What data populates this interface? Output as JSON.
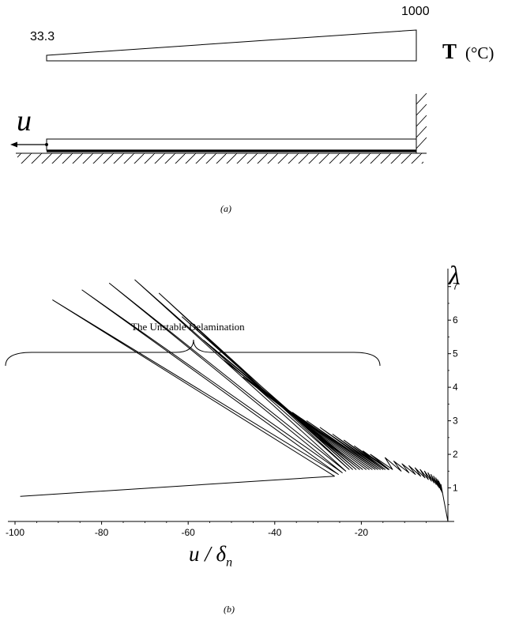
{
  "figure_a": {
    "temp_left": "33.3",
    "temp_right": "1000",
    "temp_symbol": "T",
    "temp_unit": "(°C)",
    "disp_symbol": "u",
    "caption": "(a)"
  },
  "chart_data": {
    "type": "line",
    "annotation": "The Unstable Delamination",
    "xlabel": "u / δn",
    "ylabel": "λ",
    "xlim": [
      -100,
      0
    ],
    "ylim": [
      0,
      7.3
    ],
    "xticks": [
      "-100",
      "-80",
      "-60",
      "-40",
      "-20"
    ],
    "yticks": [
      "1",
      "2",
      "3",
      "4",
      "5",
      "6",
      "7"
    ],
    "caption": "(b)",
    "series": [
      {
        "x": [
          0,
          -1.6,
          -1.3,
          -1.9,
          -1.5,
          -2.1,
          -1.7,
          -2.4,
          -2.0,
          -2.8,
          -2.3,
          -3.3,
          -2.7,
          -3.9,
          -3.2,
          -4.6,
          -3.8,
          -5.4,
          -4.5,
          -6.4,
          -5.3,
          -7.6,
          -6.3,
          -9.0,
          -7.5,
          -10.6,
          -9.0,
          -12.5,
          -10.8,
          -14.5,
          -12.8,
          -17.9,
          -13.6,
          -19.6,
          -13.8,
          -21.6,
          -14.5,
          -24.0,
          -15.0,
          -26.6,
          -15.6,
          -29.5,
          -16.2,
          -32.6,
          -16.8,
          -35.9,
          -17.5,
          -39.4,
          -18.2,
          -43.2,
          -18.9,
          -47.3,
          -19.7,
          -51.7,
          -20.4,
          -56.4,
          -21.2,
          -61.4,
          -22.0,
          -66.7,
          -22.8,
          -72.3,
          -23.6,
          -78.2,
          -24.4,
          -84.5,
          -25.3,
          -91.3,
          -26.2,
          -98.8
        ],
        "y": [
          0,
          1.1,
          0.85,
          1.15,
          0.9,
          1.2,
          0.95,
          1.25,
          1.0,
          1.3,
          1.05,
          1.35,
          1.1,
          1.4,
          1.15,
          1.45,
          1.2,
          1.5,
          1.25,
          1.55,
          1.3,
          1.6,
          1.35,
          1.66,
          1.4,
          1.72,
          1.45,
          1.8,
          1.5,
          1.9,
          1.55,
          2.0,
          1.55,
          2.1,
          1.55,
          2.25,
          1.55,
          2.42,
          1.55,
          2.6,
          1.55,
          2.8,
          1.55,
          3.0,
          1.55,
          3.25,
          1.55,
          3.55,
          1.55,
          3.9,
          1.55,
          4.3,
          1.55,
          4.8,
          1.55,
          5.4,
          1.55,
          6.1,
          1.55,
          6.8,
          1.55,
          7.2,
          1.5,
          7.1,
          1.45,
          6.9,
          1.4,
          6.6,
          1.35,
          0.75
        ]
      }
    ]
  }
}
